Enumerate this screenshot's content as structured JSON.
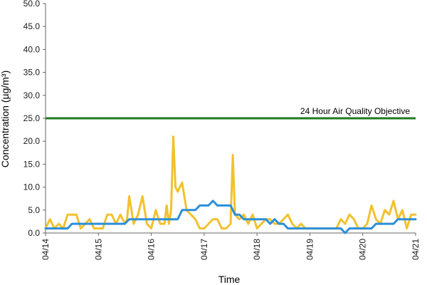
{
  "chart_data": {
    "type": "line",
    "title": "",
    "xlabel": "Time",
    "ylabel": "Concentration (µg/m³)",
    "ylim": [
      0,
      50
    ],
    "y_ticks": [
      "0.0",
      "5.0",
      "10.0",
      "15.0",
      "20.0",
      "25.0",
      "30.0",
      "35.0",
      "40.0",
      "45.0",
      "50.0"
    ],
    "x_range": [
      "04/14 00:00",
      "04/21 00:00"
    ],
    "x_ticks": [
      "04/14",
      "04/15",
      "04/16",
      "04/17",
      "04/18",
      "04/19",
      "04/20",
      "04/21"
    ],
    "grid": false,
    "legend": "none",
    "reference_line": {
      "label": "24 Hour Air Quality Objective",
      "value": 25,
      "color": "#1f7a1f"
    },
    "series": [
      {
        "color": "#f2c12e",
        "x": [
          "04/14 00:00",
          "04/14 02:00",
          "04/14 04:00",
          "04/14 06:00",
          "04/14 08:00",
          "04/14 10:00",
          "04/14 12:00",
          "04/14 14:00",
          "04/14 16:00",
          "04/14 18:00",
          "04/14 20:00",
          "04/14 22:00",
          "04/15 00:00",
          "04/15 02:00",
          "04/15 04:00",
          "04/15 06:00",
          "04/15 08:00",
          "04/15 10:00",
          "04/15 12:00",
          "04/15 13:00",
          "04/15 14:00",
          "04/15 16:00",
          "04/15 18:00",
          "04/15 20:00",
          "04/15 22:00",
          "04/16 00:00",
          "04/16 02:00",
          "04/16 04:00",
          "04/16 06:00",
          "04/16 07:00",
          "04/16 08:00",
          "04/16 09:00",
          "04/16 10:00",
          "04/16 11:00",
          "04/16 12:00",
          "04/16 14:00",
          "04/16 16:00",
          "04/16 18:00",
          "04/16 20:00",
          "04/16 22:00",
          "04/17 00:00",
          "04/17 02:00",
          "04/17 04:00",
          "04/17 06:00",
          "04/17 08:00",
          "04/17 10:00",
          "04/17 12:00",
          "04/17 13:00",
          "04/17 14:00",
          "04/17 16:00",
          "04/17 18:00",
          "04/17 20:00",
          "04/17 22:00",
          "04/18 00:00",
          "04/18 02:00",
          "04/18 04:00",
          "04/18 06:00",
          "04/18 08:00",
          "04/18 10:00",
          "04/18 12:00",
          "04/18 14:00",
          "04/18 16:00",
          "04/18 18:00",
          "04/18 20:00",
          "04/18 22:00",
          "04/19 00:00",
          "04/19 04:00",
          "04/19 08:00",
          "04/19 12:00",
          "04/19 14:00",
          "04/19 16:00",
          "04/19 18:00",
          "04/19 20:00",
          "04/19 22:00",
          "04/20 00:00",
          "04/20 02:00",
          "04/20 04:00",
          "04/20 06:00",
          "04/20 08:00",
          "04/20 10:00",
          "04/20 12:00",
          "04/20 14:00",
          "04/20 16:00",
          "04/20 18:00",
          "04/20 20:00",
          "04/20 22:00",
          "04/21 00:00"
        ],
        "values": [
          1,
          3,
          1,
          2,
          1,
          4,
          4,
          4,
          1,
          2,
          3,
          1,
          1,
          1,
          4,
          4,
          2,
          4,
          2,
          3,
          8,
          2,
          4,
          8,
          2,
          1,
          5,
          2,
          2,
          6,
          2,
          5,
          21,
          10,
          9,
          11,
          5,
          4,
          3,
          1,
          1,
          2,
          3,
          3,
          1,
          1,
          2,
          17,
          4,
          3,
          4,
          2,
          4,
          1,
          2,
          3,
          3,
          2,
          2,
          3,
          4,
          2,
          1,
          2,
          1,
          1,
          1,
          1,
          1,
          3,
          2,
          4,
          3,
          1,
          1,
          2,
          6,
          3,
          2,
          5,
          4,
          7,
          3,
          5,
          1,
          4,
          4
        ]
      },
      {
        "color": "#2b8fd9",
        "x": [
          "04/14 00:00",
          "04/14 10:00",
          "04/14 12:00",
          "04/15 12:00",
          "04/15 14:00",
          "04/16 12:00",
          "04/16 14:00",
          "04/16 20:00",
          "04/16 22:00",
          "04/17 02:00",
          "04/17 04:00",
          "04/17 06:00",
          "04/17 12:00",
          "04/17 14:00",
          "04/17 16:00",
          "04/17 18:00",
          "04/18 04:00",
          "04/18 06:00",
          "04/18 08:00",
          "04/18 10:00",
          "04/18 12:00",
          "04/18 14:00",
          "04/19 00:00",
          "04/19 14:00",
          "04/19 16:00",
          "04/19 18:00",
          "04/20 04:00",
          "04/20 06:00",
          "04/20 14:00",
          "04/20 16:00",
          "04/21 00:00"
        ],
        "values": [
          1,
          1,
          2,
          2,
          3,
          3,
          5,
          5,
          6,
          6,
          7,
          6,
          6,
          4,
          4,
          3,
          3,
          2,
          3,
          2,
          2,
          1,
          1,
          1,
          0,
          1,
          1,
          2,
          2,
          3,
          3
        ]
      }
    ]
  }
}
